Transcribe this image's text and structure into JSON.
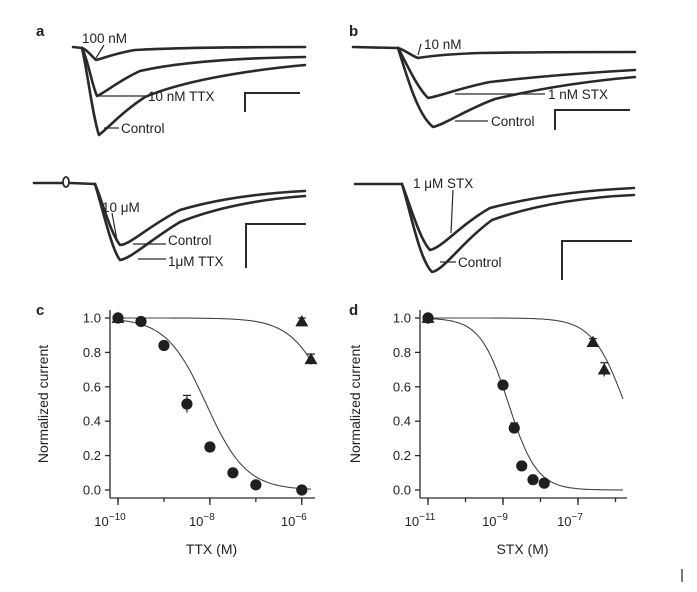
{
  "panels": {
    "a": {
      "label": "a",
      "top_labels": {
        "low": "100 nM",
        "mid": "10 nM TTX",
        "control": "Control"
      },
      "bottom_labels": {
        "drug": "10 μM",
        "control": "Control",
        "drug2": "1μM  TTX"
      }
    },
    "b": {
      "label": "b",
      "top_labels": {
        "low": "10 nM",
        "mid": "1 nM STX",
        "control": "Control"
      },
      "bottom_labels": {
        "drug": "1 μM STX",
        "control": "Control"
      }
    }
  },
  "chart_data": [
    {
      "panel": "c",
      "type": "scatter",
      "xlabel": "TTX (M)",
      "ylabel": "Normalized current",
      "xscale": "log",
      "xlim_log10": [
        -10,
        -5.8
      ],
      "ylim": [
        0.0,
        1.0
      ],
      "xticks": [
        {
          "exp": -10,
          "base": "10",
          "sup": "−10"
        },
        {
          "exp": -8,
          "base": "10",
          "sup": "−8"
        },
        {
          "exp": -6,
          "base": "10",
          "sup": "−6"
        }
      ],
      "yticks": [
        "0.0",
        "0.2",
        "0.4",
        "0.6",
        "0.8",
        "1.0"
      ],
      "series": [
        {
          "name": "circles",
          "marker": "circle",
          "x_log10": [
            -10,
            -9.5,
            -9,
            -8.5,
            -8,
            -7.5,
            -7,
            -6
          ],
          "y": [
            1.0,
            0.98,
            0.84,
            0.5,
            0.25,
            0.1,
            0.03,
            0.0
          ],
          "error": [
            0,
            0,
            0,
            0.05,
            0.02,
            0,
            0,
            0
          ]
        },
        {
          "name": "triangles",
          "marker": "triangle",
          "x_log10": [
            -10,
            -6,
            -5.8
          ],
          "y": [
            1.0,
            0.98,
            0.76
          ],
          "error": [
            0,
            0.02,
            0.03
          ]
        }
      ],
      "fits": [
        {
          "for": "circles",
          "ic50_log10": -8.08,
          "hill": 1.0
        },
        {
          "for": "triangles",
          "ic50_log10": -5.32,
          "hill": 1.0
        }
      ]
    },
    {
      "panel": "d",
      "type": "scatter",
      "xlabel": "STX (M)",
      "ylabel": "Normalized current",
      "xscale": "log",
      "xlim_log10": [
        -11,
        -5.8
      ],
      "ylim": [
        0.0,
        1.0
      ],
      "xticks": [
        {
          "exp": -11,
          "base": "10",
          "sup": "−11"
        },
        {
          "exp": -9,
          "base": "10",
          "sup": "−9"
        },
        {
          "exp": -7,
          "base": "10",
          "sup": "−7"
        }
      ],
      "yticks": [
        "0.0",
        "0.2",
        "0.4",
        "0.6",
        "0.8",
        "1.0"
      ],
      "series": [
        {
          "name": "circles",
          "marker": "circle",
          "x_log10": [
            -11,
            -9,
            -8.7,
            -8.5,
            -8.2,
            -7.9
          ],
          "y": [
            1.0,
            0.61,
            0.36,
            0.14,
            0.06,
            0.04
          ],
          "error": [
            0,
            0.02,
            0.03,
            0,
            0,
            0
          ]
        },
        {
          "name": "triangles",
          "marker": "triangle",
          "x_log10": [
            -11,
            -6.6,
            -6.3
          ],
          "y": [
            1.0,
            0.86,
            0.7
          ],
          "error": [
            0,
            0.02,
            0.04
          ]
        }
      ],
      "fits": [
        {
          "for": "circles",
          "ic50_log10": -8.85,
          "hill": 1.15
        },
        {
          "for": "triangles",
          "ic50_log10": -5.75,
          "hill": 1.0
        }
      ]
    }
  ]
}
